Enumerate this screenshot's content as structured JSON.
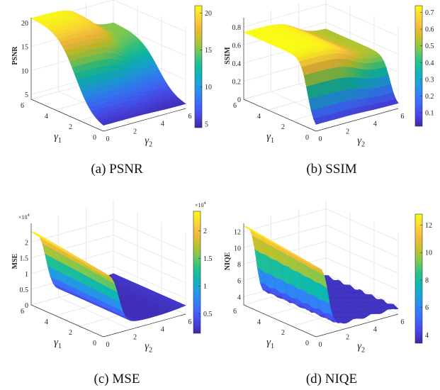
{
  "colormap": [
    "#3e26a8",
    "#4745e2",
    "#4066fd",
    "#2f85f5",
    "#1da3dc",
    "#0cb8b4",
    "#2bc386",
    "#7bc953",
    "#c1c22a",
    "#f5b93c",
    "#fdd735",
    "#f9fb15"
  ],
  "chart_data": [
    {
      "type": "surface",
      "id": "a",
      "caption": "(a)  PSNR",
      "zlabel": "PSNR",
      "xlabel_base": "γ",
      "xlabel_sub": "1",
      "ylabel_base": "γ",
      "ylabel_sub": "2",
      "z_exponent_label": "",
      "xlim": [
        0,
        6
      ],
      "ylim": [
        0,
        6
      ],
      "zlim": [
        4,
        21
      ],
      "gamma1_ticks": [
        "0",
        "2",
        "4",
        "6"
      ],
      "gamma2_ticks": [
        "0",
        "2",
        "4",
        "6"
      ],
      "z_ticks": [
        {
          "v": 5,
          "label": "5"
        },
        {
          "v": 10,
          "label": "10"
        },
        {
          "v": 15,
          "label": "15"
        },
        {
          "v": 20,
          "label": "20"
        }
      ],
      "colorbar": {
        "range": [
          4.5,
          21
        ],
        "ticks": [
          {
            "v": 5,
            "label": "5"
          },
          {
            "v": 10,
            "label": "10"
          },
          {
            "v": 15,
            "label": "15"
          },
          {
            "v": 20,
            "label": "20"
          }
        ],
        "exponent_label": ""
      },
      "surface": {
        "model": "psnr",
        "base": 4.5,
        "peak": 21,
        "approx_peak_at": {
          "gamma1": 6,
          "gamma2": 0
        }
      }
    },
    {
      "type": "surface",
      "id": "b",
      "caption": "(b)  SSIM",
      "zlabel": "SSIM",
      "xlabel_base": "γ",
      "xlabel_sub": "1",
      "ylabel_base": "γ",
      "ylabel_sub": "2",
      "z_exponent_label": "",
      "xlim": [
        0,
        6
      ],
      "ylim": [
        0,
        6
      ],
      "zlim": [
        0,
        0.9
      ],
      "gamma1_ticks": [
        "0",
        "2",
        "4",
        "6"
      ],
      "gamma2_ticks": [
        "0",
        "2",
        "4",
        "6"
      ],
      "z_ticks": [
        {
          "v": 0,
          "label": "0"
        },
        {
          "v": 0.2,
          "label": "0.2"
        },
        {
          "v": 0.4,
          "label": "0.4"
        },
        {
          "v": 0.6,
          "label": "0.6"
        },
        {
          "v": 0.8,
          "label": "0.8"
        }
      ],
      "colorbar": {
        "range": [
          0.02,
          0.74
        ],
        "ticks": [
          {
            "v": 0.1,
            "label": "0.1"
          },
          {
            "v": 0.2,
            "label": "0.2"
          },
          {
            "v": 0.3,
            "label": "0.3"
          },
          {
            "v": 0.4,
            "label": "0.4"
          },
          {
            "v": 0.5,
            "label": "0.5"
          },
          {
            "v": 0.6,
            "label": "0.6"
          },
          {
            "v": 0.7,
            "label": "0.7"
          }
        ],
        "exponent_label": ""
      },
      "surface": {
        "model": "ssim",
        "base": 0.02,
        "peak": 0.74,
        "approx_peak_at": {
          "gamma1": 6,
          "gamma2": 0
        }
      }
    },
    {
      "type": "surface",
      "id": "c",
      "caption": "(c)  MSE",
      "zlabel": "MSE",
      "xlabel_base": "γ",
      "xlabel_sub": "1",
      "ylabel_base": "γ",
      "ylabel_sub": "2",
      "z_exponent_label": "×10",
      "z_exponent_power": "4",
      "xlim": [
        0,
        6
      ],
      "ylim": [
        0,
        6
      ],
      "zlim": [
        0,
        2.6
      ],
      "gamma1_ticks": [
        "0",
        "2",
        "4",
        "6"
      ],
      "gamma2_ticks": [
        "0",
        "2",
        "4",
        "6"
      ],
      "z_ticks": [
        {
          "v": 0,
          "label": "0"
        },
        {
          "v": 0.5,
          "label": "0.5"
        },
        {
          "v": 1,
          "label": "1"
        },
        {
          "v": 1.5,
          "label": "1.5"
        },
        {
          "v": 2,
          "label": "2"
        }
      ],
      "colorbar": {
        "range": [
          0.15,
          2.35
        ],
        "ticks": [
          {
            "v": 0.5,
            "label": "0.5"
          },
          {
            "v": 1,
            "label": "1"
          },
          {
            "v": 1.5,
            "label": "1.5"
          },
          {
            "v": 2,
            "label": "2"
          }
        ],
        "exponent_label": "×10",
        "exponent_power": "4"
      },
      "surface": {
        "model": "mse",
        "base": 0.15,
        "peak": 2.35,
        "approx_peak_at": {
          "gamma1": 6,
          "gamma2": 0
        }
      }
    },
    {
      "type": "surface",
      "id": "d",
      "caption": "(d)  NIQE",
      "zlabel": "NIQE",
      "xlabel_base": "γ",
      "xlabel_sub": "1",
      "ylabel_base": "γ",
      "ylabel_sub": "2",
      "z_exponent_label": "",
      "xlim": [
        0,
        6
      ],
      "ylim": [
        0,
        6
      ],
      "zlim": [
        3,
        13
      ],
      "gamma1_ticks": [
        "0",
        "2",
        "4",
        "6"
      ],
      "gamma2_ticks": [
        "0",
        "2",
        "4",
        "6"
      ],
      "z_ticks": [
        {
          "v": 4,
          "label": "4"
        },
        {
          "v": 6,
          "label": "6"
        },
        {
          "v": 8,
          "label": "8"
        },
        {
          "v": 10,
          "label": "10"
        },
        {
          "v": 12,
          "label": "12"
        }
      ],
      "colorbar": {
        "range": [
          3.4,
          12.8
        ],
        "ticks": [
          {
            "v": 4,
            "label": "4"
          },
          {
            "v": 6,
            "label": "6"
          },
          {
            "v": 8,
            "label": "8"
          },
          {
            "v": 10,
            "label": "10"
          },
          {
            "v": 12,
            "label": "12"
          }
        ],
        "exponent_label": ""
      },
      "surface": {
        "model": "niqe",
        "base": 3.5,
        "peak": 12.7,
        "approx_peak_at": {
          "gamma1": 6,
          "gamma2": 0
        }
      }
    }
  ]
}
